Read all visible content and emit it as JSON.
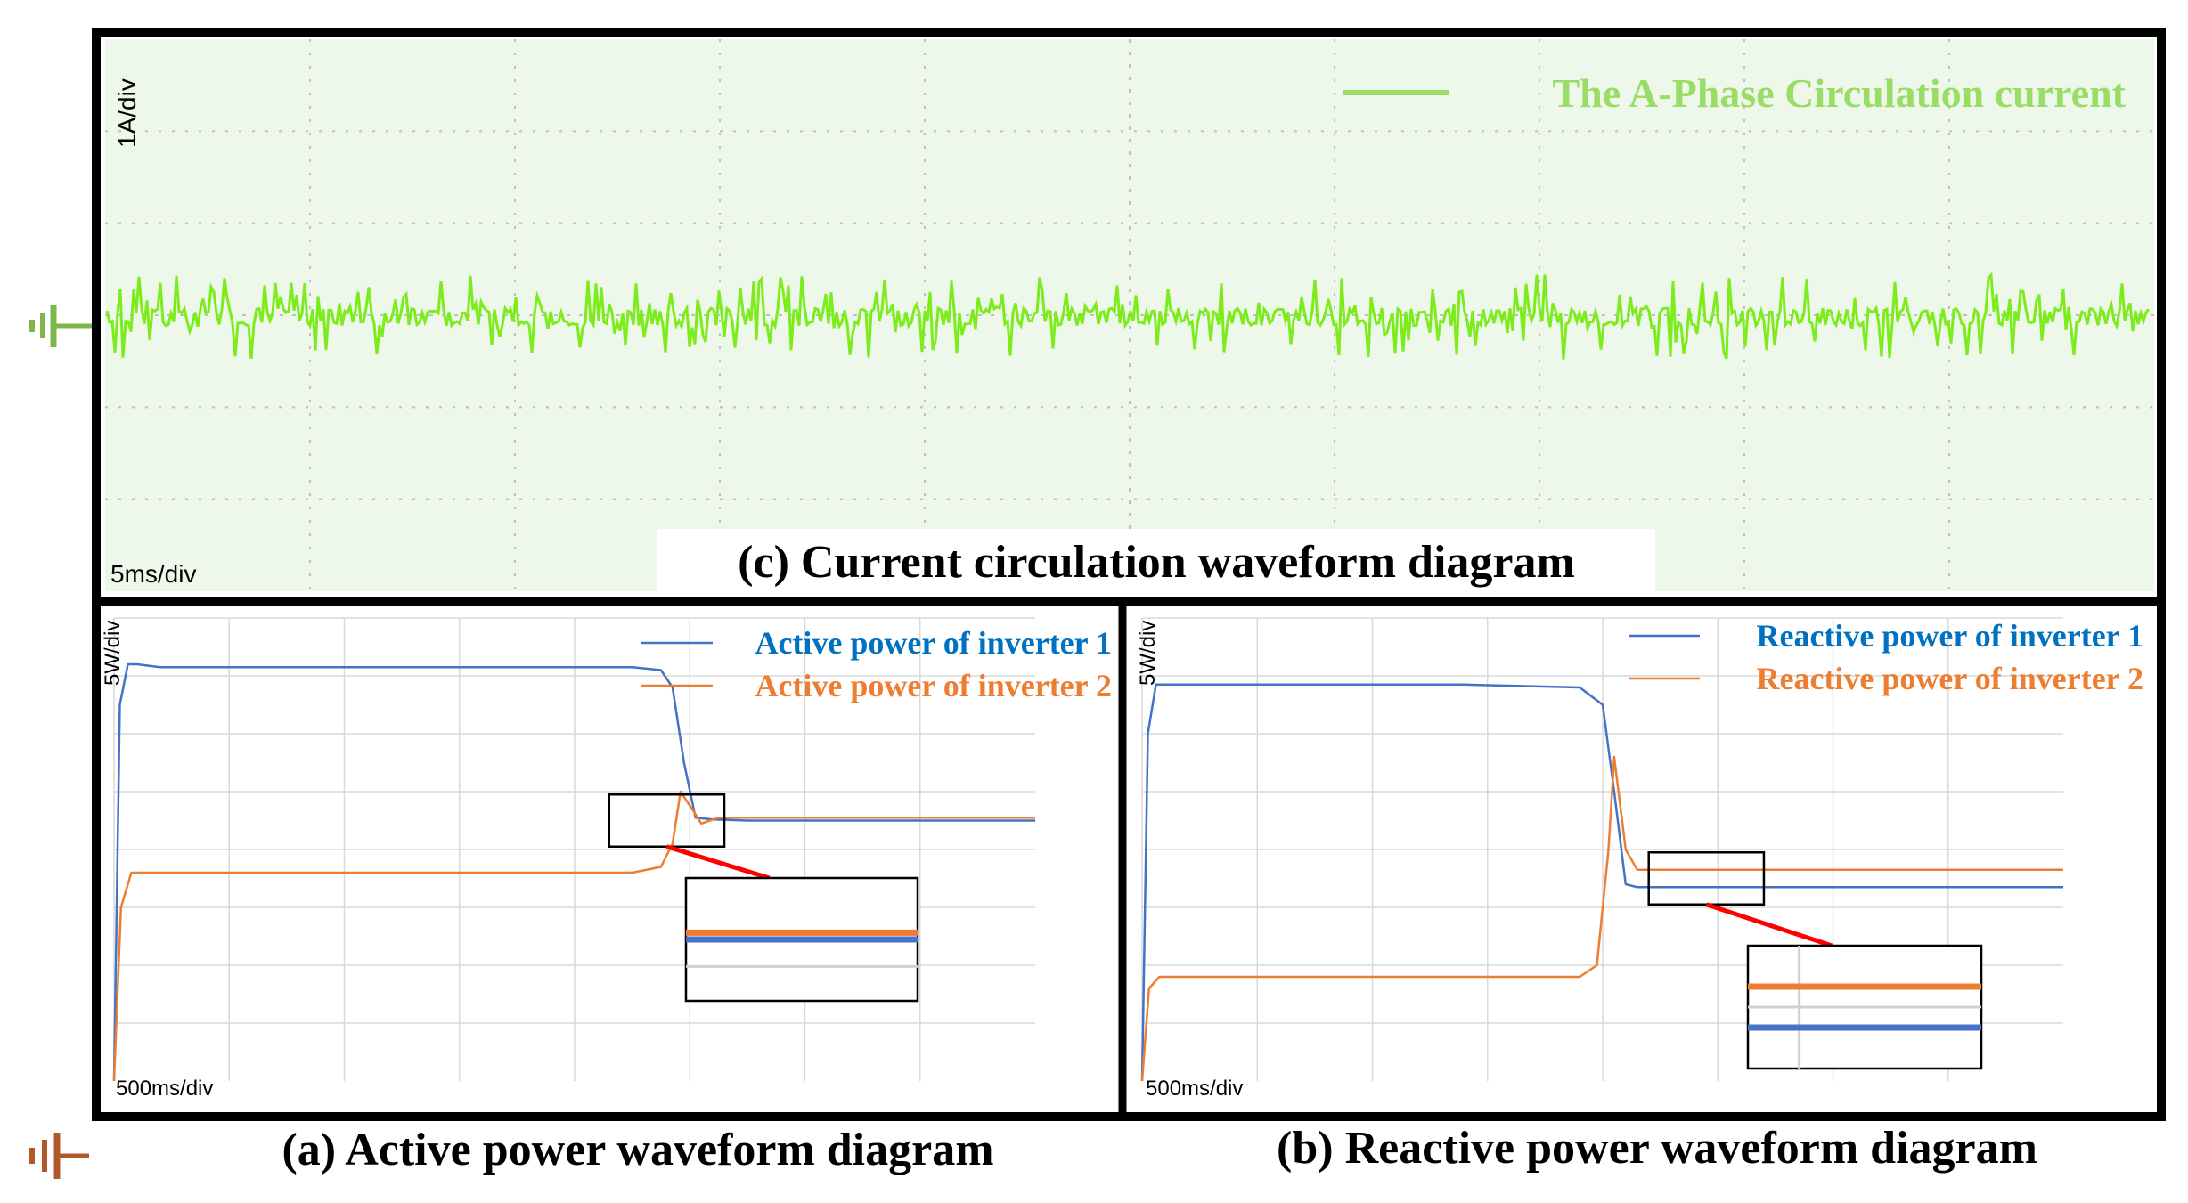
{
  "colors": {
    "green_trace": "#7cec1c",
    "green_text": "#99dd66",
    "green_bg": "#eef8ea",
    "blue": "#4472c4",
    "orange": "#ed7d31",
    "blue_text": "#0070c0",
    "orange_text": "#ed7d31",
    "ground_green": "#7fb64c",
    "ground_brown": "#b05a2b",
    "zoom_line": "#ff0000"
  },
  "icons": [
    "ground-marker-icon",
    "zoom-connector-line"
  ],
  "chart_data": [
    {
      "id": "c",
      "type": "line",
      "title": "(c) Current circulation waveform diagram",
      "ylabel": "1A/div",
      "xlabel": "5ms/div",
      "grid": true,
      "grid_divisions": {
        "x": 10,
        "y": 6
      },
      "legend_placement": "top-right",
      "series": [
        {
          "name": "The A-Phase Circulation current",
          "color": "#7cec1c",
          "description_units": "divisions",
          "baseline": 0,
          "noise_amplitude_div": 0.3
        }
      ]
    },
    {
      "id": "a",
      "type": "line",
      "title": "(a) Active power waveform diagram",
      "ylabel": "5W/div",
      "xlabel": "500ms/div",
      "grid": true,
      "grid_divisions": {
        "x": 8,
        "y": 8
      },
      "legend_placement": "top-right",
      "xlim": [
        0,
        8
      ],
      "ylim": [
        0,
        8
      ],
      "series": [
        {
          "name": "Active power of inverter 1",
          "color": "#4472c4",
          "x": [
            0,
            0.05,
            0.12,
            0.2,
            0.4,
            4.5,
            4.75,
            4.85,
            4.95,
            5.05,
            5.2,
            5.5,
            8.0
          ],
          "y": [
            0,
            6.5,
            7.2,
            7.2,
            7.15,
            7.15,
            7.1,
            6.8,
            5.5,
            4.55,
            4.52,
            4.5,
            4.5
          ]
        },
        {
          "name": "Active power of inverter 2",
          "color": "#ed7d31",
          "x": [
            0,
            0.06,
            0.15,
            0.4,
            4.5,
            4.75,
            4.85,
            4.92,
            5.02,
            5.1,
            5.25,
            5.5,
            8.0
          ],
          "y": [
            0,
            3.0,
            3.6,
            3.6,
            3.6,
            3.7,
            4.1,
            5.0,
            4.7,
            4.45,
            4.55,
            4.55,
            4.55
          ]
        }
      ],
      "zoom_box": {
        "x": [
          4.3,
          5.3
        ],
        "y": [
          4.05,
          4.95
        ]
      }
    },
    {
      "id": "b",
      "type": "line",
      "title": "(b) Reactive power waveform diagram",
      "ylabel": "5W/div",
      "xlabel": "500ms/div",
      "grid": true,
      "grid_divisions": {
        "x": 8,
        "y": 8
      },
      "legend_placement": "top-right",
      "xlim": [
        0,
        8
      ],
      "ylim": [
        0,
        8
      ],
      "series": [
        {
          "name": "Reactive power of inverter 1",
          "color": "#4472c4",
          "x": [
            0,
            0.05,
            0.12,
            0.2,
            0.4,
            2.8,
            3.8,
            4.0,
            4.1,
            4.2,
            4.3,
            4.4,
            8.0
          ],
          "y": [
            0,
            6.0,
            6.85,
            6.85,
            6.85,
            6.85,
            6.8,
            6.5,
            5.0,
            3.4,
            3.35,
            3.35,
            3.35
          ]
        },
        {
          "name": "Reactive power of inverter 2",
          "color": "#ed7d31",
          "x": [
            0,
            0.06,
            0.15,
            0.4,
            3.8,
            3.95,
            4.05,
            4.1,
            4.2,
            4.3,
            4.4,
            8.0
          ],
          "y": [
            0,
            1.6,
            1.8,
            1.8,
            1.8,
            2.0,
            4.0,
            5.6,
            4.0,
            3.65,
            3.65,
            3.65
          ]
        }
      ],
      "zoom_box": {
        "x": [
          4.4,
          5.4
        ],
        "y": [
          3.05,
          3.95
        ]
      }
    }
  ]
}
